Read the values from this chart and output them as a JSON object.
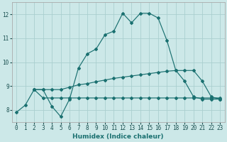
{
  "xlabel": "Humidex (Indice chaleur)",
  "bg_color": "#cce8e8",
  "grid_color": "#aacfcf",
  "line_color": "#1a7070",
  "xlim": [
    -0.5,
    23.5
  ],
  "ylim": [
    7.5,
    12.5
  ],
  "yticks": [
    8,
    9,
    10,
    11,
    12
  ],
  "xticks": [
    0,
    1,
    2,
    3,
    4,
    5,
    6,
    7,
    8,
    9,
    10,
    11,
    12,
    13,
    14,
    15,
    16,
    17,
    18,
    19,
    20,
    21,
    22,
    23
  ],
  "line1_x": [
    0,
    1,
    2,
    3,
    4,
    5,
    6,
    7,
    8,
    9,
    10,
    11,
    12,
    13,
    14,
    15,
    16,
    17,
    18,
    19,
    20,
    21,
    22,
    23
  ],
  "line1_y": [
    7.9,
    8.2,
    8.85,
    8.85,
    8.15,
    7.72,
    8.45,
    9.75,
    10.35,
    10.55,
    11.15,
    11.3,
    12.05,
    11.65,
    12.05,
    12.05,
    11.85,
    10.9,
    9.65,
    9.2,
    8.55,
    8.45,
    8.45,
    8.45
  ],
  "line2_x": [
    2,
    3,
    4,
    5,
    6,
    7,
    8,
    9,
    10,
    11,
    12,
    13,
    14,
    15,
    16,
    17,
    18,
    19,
    20,
    21,
    22,
    23
  ],
  "line2_y": [
    8.85,
    8.5,
    8.5,
    8.5,
    8.5,
    8.5,
    8.5,
    8.5,
    8.5,
    8.5,
    8.5,
    8.5,
    8.5,
    8.5,
    8.5,
    8.5,
    8.5,
    8.5,
    8.5,
    8.5,
    8.5,
    8.5
  ],
  "line3_x": [
    2,
    3,
    4,
    5,
    6,
    7,
    8,
    9,
    10,
    11,
    12,
    13,
    14,
    15,
    16,
    17,
    18,
    19,
    20,
    21,
    22,
    23
  ],
  "line3_y": [
    8.85,
    8.85,
    8.85,
    8.85,
    8.95,
    9.05,
    9.1,
    9.18,
    9.25,
    9.32,
    9.37,
    9.42,
    9.47,
    9.52,
    9.57,
    9.62,
    9.65,
    9.65,
    9.65,
    9.2,
    8.55,
    8.45
  ]
}
